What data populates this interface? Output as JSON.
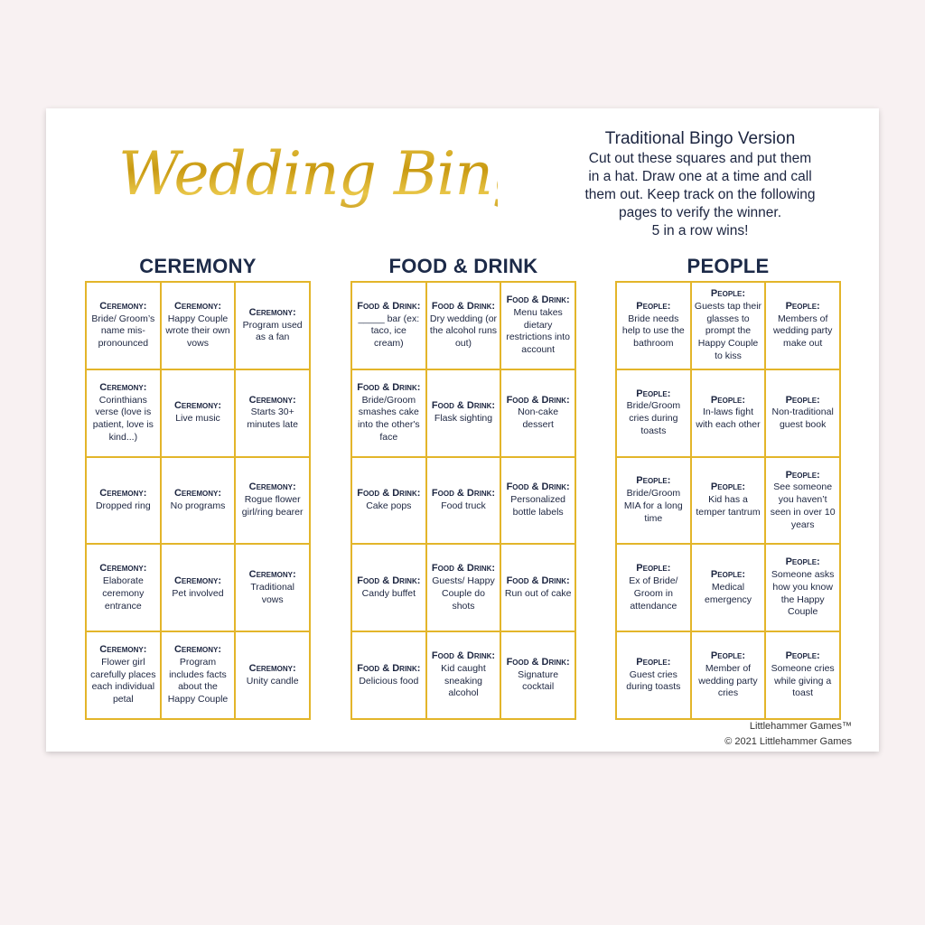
{
  "title": "Wedding Bingo",
  "instructions": {
    "heading": "Traditional Bingo Version",
    "lines": [
      "Cut out these squares and put them",
      "in a hat. Draw one at a time and call",
      "them out. Keep track on the following",
      "pages to verify the winner.",
      "5 in a row wins!"
    ]
  },
  "colors": {
    "gold": "#e3b52a",
    "navy": "#1c2a48",
    "background": "#f8f1f2"
  },
  "sections": [
    {
      "heading": "CEREMONY",
      "category": "Ceremony:",
      "cells": [
        "Bride/ Groom’s name mis-pronounced",
        "Happy Couple wrote their own vows",
        "Program used as a fan",
        "Corinthians verse (love is patient, love is kind...)",
        "Live music",
        "Starts 30+ minutes late",
        "Dropped ring",
        "No programs",
        "Rogue flower girl/ring bearer",
        "Elaborate ceremony entrance",
        "Pet involved",
        "Traditional vows",
        "Flower girl carefully places each individual petal",
        "Program includes facts about the Happy Couple",
        "Unity candle"
      ]
    },
    {
      "heading": "FOOD & DRINK",
      "category": "Food & Drink:",
      "cells": [
        "_____ bar (ex: taco, ice cream)",
        "Dry wedding (or the alcohol runs out)",
        "Menu takes dietary restrictions into account",
        "Bride/Groom smashes cake into the other's face",
        "Flask sighting",
        "Non-cake dessert",
        "Cake pops",
        "Food truck",
        "Personalized bottle labels",
        "Candy buffet",
        "Guests/ Happy Couple do shots",
        "Run out of cake",
        "Delicious food",
        "Kid caught sneaking alcohol",
        "Signature cocktail"
      ]
    },
    {
      "heading": "PEOPLE",
      "category": "People:",
      "cells": [
        "Bride needs help to use the bathroom",
        "Guests tap their glasses to prompt the Happy Couple to kiss",
        "Members of wedding party make out",
        "Bride/Groom cries during toasts",
        "In-laws fight with each other",
        "Non-traditional guest book",
        "Bride/Groom MIA for a long time",
        "Kid has a temper tantrum",
        "See someone you haven’t seen in over 10 years",
        "Ex of Bride/ Groom in attendance",
        "Medical emergency",
        "Someone asks how you know the Happy Couple",
        "Guest cries during toasts",
        "Member of wedding party cries",
        "Someone cries while giving a toast"
      ]
    }
  ],
  "footer": {
    "brand": "Littlehammer Games™",
    "copyright": "© 2021 Littlehammer Games"
  }
}
